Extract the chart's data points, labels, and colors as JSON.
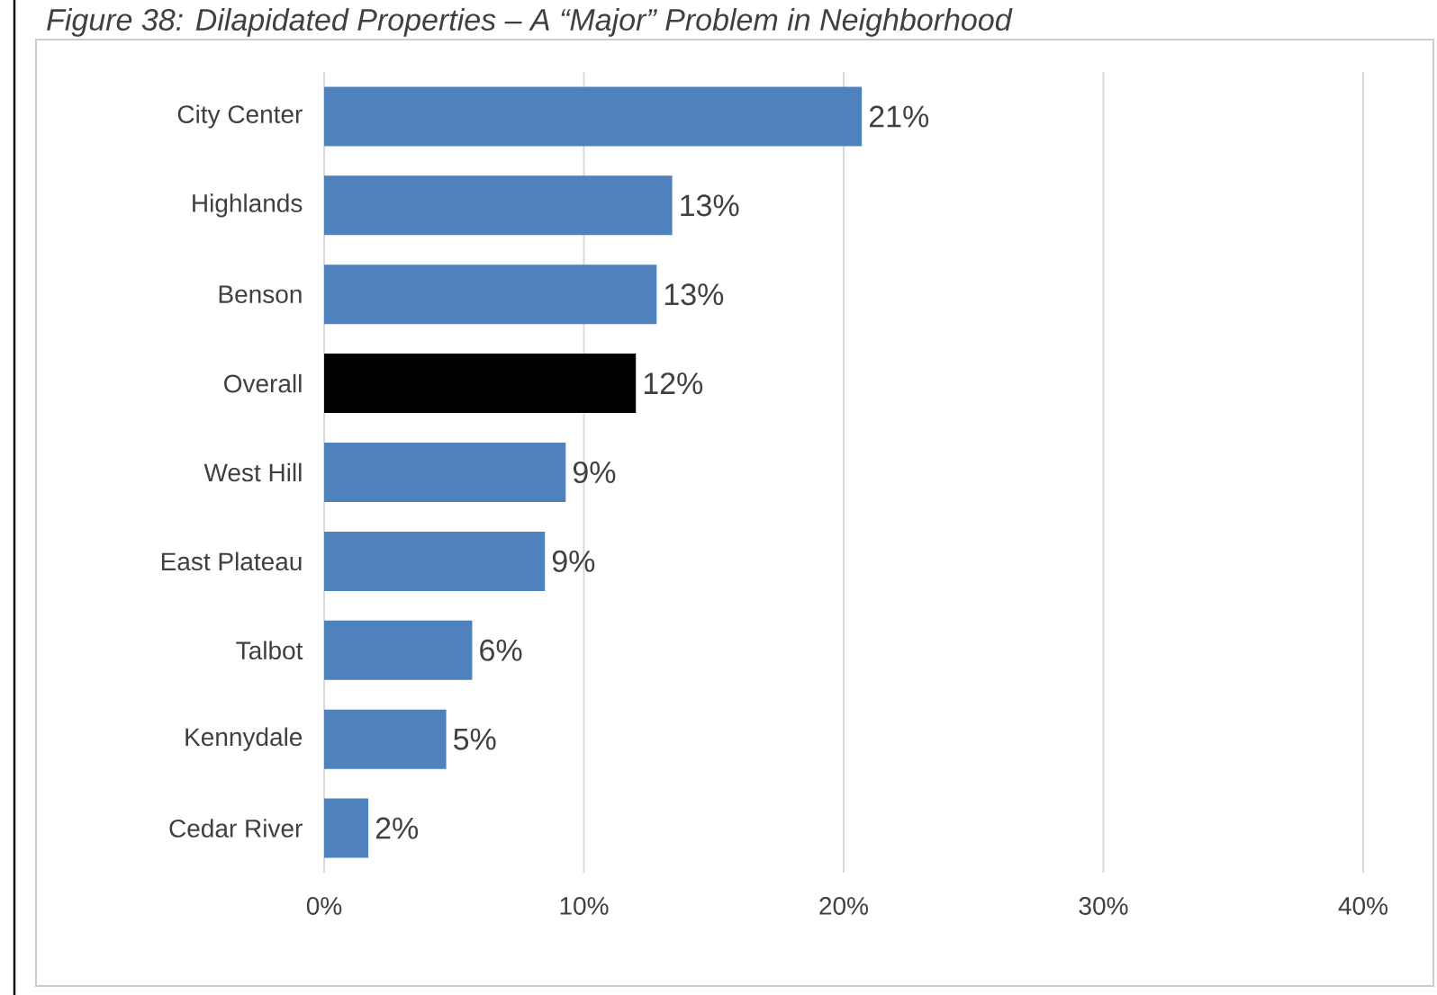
{
  "chart_data": {
    "type": "bar",
    "orientation": "horizontal",
    "title": "*Figure 38: Dilapidated Properties – A “Major” Problem in Neighborhood*",
    "categories": [
      "City Center",
      "Highlands",
      "Benson",
      "Overall",
      "West Hill",
      "East Plateau",
      "Talbot",
      "Kennydale",
      "Cedar River"
    ],
    "values": [
      20.7,
      13.4,
      12.8,
      12.0,
      9.3,
      8.5,
      5.7,
      4.7,
      1.7
    ],
    "value_labels": [
      "21%",
      "13%",
      "13%",
      "12%",
      "9%",
      "9%",
      "6%",
      "5%",
      "2%"
    ],
    "colors": [
      "#4f81bd",
      "#4f81bd",
      "#4f81bd",
      "#000000",
      "#4f81bd",
      "#4f81bd",
      "#4f81bd",
      "#4f81bd",
      "#4f81bd"
    ],
    "xlim": [
      0,
      40
    ],
    "xticks": [
      {
        "value": 0,
        "label": "0%"
      },
      {
        "value": 10,
        "label": "10%"
      },
      {
        "value": 20,
        "label": "20%"
      },
      {
        "value": 30,
        "label": "30%"
      },
      {
        "value": 40,
        "label": "40%"
      }
    ],
    "grid": "x"
  }
}
